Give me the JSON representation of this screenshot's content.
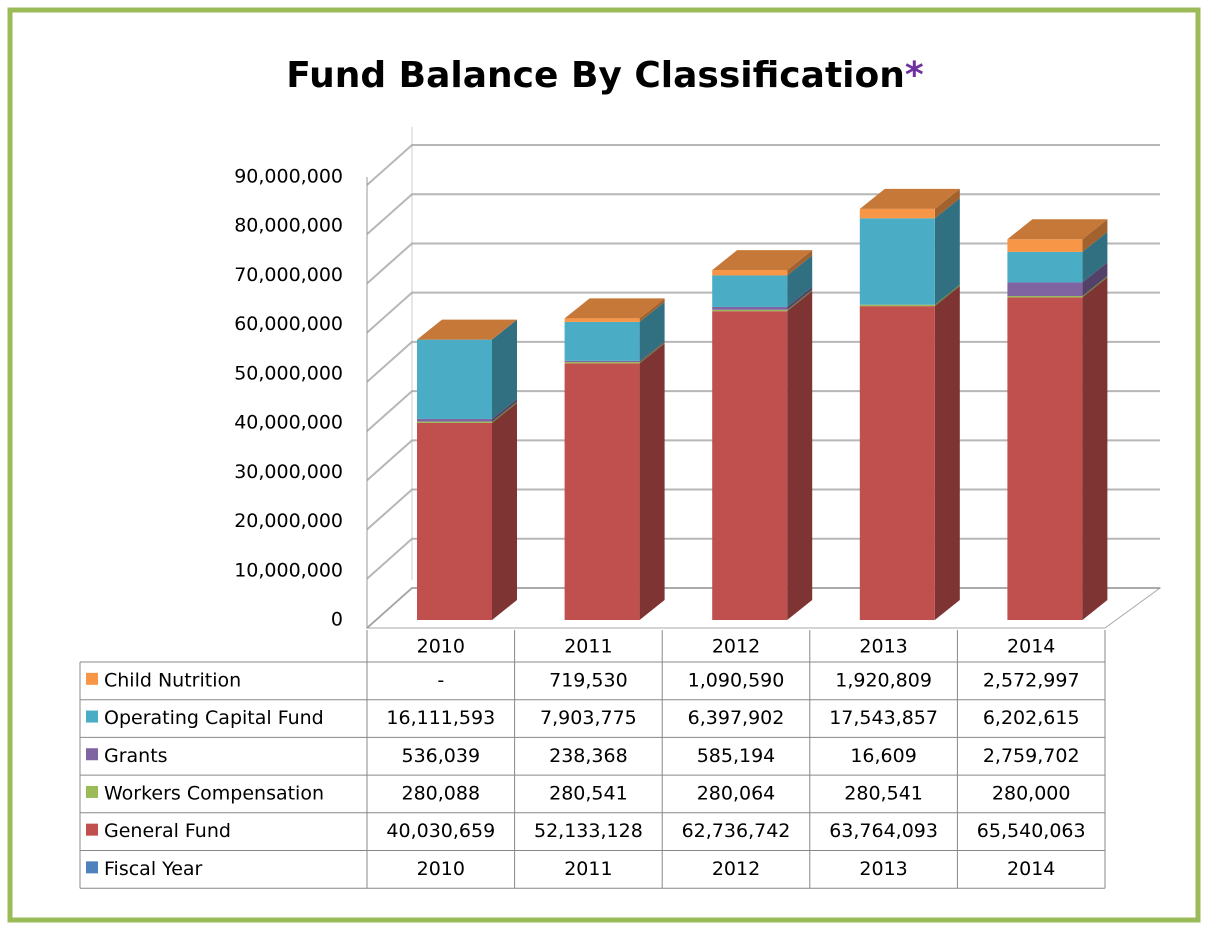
{
  "chart_data": {
    "type": "bar3d_stacked",
    "title": "Fund Balance By Classification",
    "title_mark": "*",
    "categories": [
      "2010",
      "2011",
      "2012",
      "2013",
      "2014"
    ],
    "series": [
      {
        "name": "Fiscal Year",
        "color": "#4f81bd",
        "values": [
          2010,
          2011,
          2012,
          2013,
          2014
        ]
      },
      {
        "name": "General Fund",
        "color": "#c0504d",
        "values": [
          40030659,
          52133128,
          62736742,
          63764093,
          65540063
        ],
        "value_labels": [
          "40,030,659",
          "52,133,128",
          "62,736,742",
          "63,764,093",
          "65,540,063"
        ]
      },
      {
        "name": "Workers Compensation",
        "color": "#9bbb59",
        "values": [
          280088,
          280541,
          280064,
          280541,
          280000
        ],
        "value_labels": [
          "280,088",
          "280,541",
          "280,064",
          "280,541",
          "280,000"
        ]
      },
      {
        "name": "Grants",
        "color": "#8064a2",
        "values": [
          536039,
          238368,
          585194,
          16609,
          2759702
        ],
        "value_labels": [
          "536,039",
          "238,368",
          "585,194",
          "16,609",
          "2,759,702"
        ]
      },
      {
        "name": "Operating Capital Fund",
        "color": "#4bacc6",
        "values": [
          16111593,
          7903775,
          6397902,
          17543857,
          6202615
        ],
        "value_labels": [
          "16,111,593",
          "7,903,775",
          "6,397,902",
          "17,543,857",
          "6,202,615"
        ]
      },
      {
        "name": "Child Nutrition",
        "color": "#f79646",
        "values": [
          null,
          719530,
          1090590,
          1920809,
          2572997
        ],
        "value_labels": [
          "-",
          "719,530",
          "1,090,590",
          "1,920,809",
          "2,572,997"
        ]
      }
    ],
    "ylim": [
      0,
      90000000
    ],
    "yticks": [
      0,
      {
        "value": 10000000,
        "label": "10,000,000"
      },
      {
        "value": 20000000,
        "label": "20,000,000"
      },
      {
        "value": 30000000,
        "label": "30,000,000"
      },
      {
        "value": 40000000,
        "label": "40,000,000"
      },
      {
        "value": 50000000,
        "label": "50,000,000"
      },
      {
        "value": 60000000,
        "label": "60,000,000"
      },
      {
        "value": 70000000,
        "label": "70,000,000"
      },
      {
        "value": 80000000,
        "label": "80,000,000"
      },
      {
        "value": 90000000,
        "label": "90,000,000"
      }
    ],
    "grid": true
  }
}
